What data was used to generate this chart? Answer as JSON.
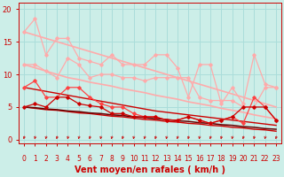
{
  "x": [
    0,
    1,
    2,
    3,
    4,
    5,
    6,
    7,
    8,
    9,
    10,
    11,
    12,
    13,
    14,
    15,
    16,
    17,
    18,
    19,
    20,
    21,
    22,
    23
  ],
  "background_color": "#cceee8",
  "grid_color": "#aaddda",
  "xlabel": "Vent moyen/en rafales ( km/h )",
  "xlabel_color": "#cc0000",
  "tick_color": "#cc0000",
  "ylim": [
    -0.5,
    21
  ],
  "yticks": [
    0,
    5,
    10,
    15,
    20
  ],
  "lines": [
    {
      "color": "#ffaaaa",
      "lw": 0.9,
      "marker": "D",
      "markersize": 1.8,
      "values": [
        16.5,
        18.5,
        13.0,
        15.5,
        15.5,
        12.5,
        12.0,
        11.5,
        13.0,
        11.5,
        11.5,
        11.5,
        13.0,
        13.0,
        11.0,
        6.5,
        11.5,
        11.5,
        5.5,
        8.0,
        5.5,
        13.0,
        8.5,
        8.0
      ]
    },
    {
      "color": "#ffaaaa",
      "lw": 1.2,
      "marker": null,
      "markersize": 0,
      "values": [
        16.5,
        16.0,
        15.5,
        15.0,
        14.5,
        14.0,
        13.5,
        13.0,
        12.5,
        12.0,
        11.5,
        11.0,
        10.5,
        10.0,
        9.5,
        9.0,
        8.5,
        8.0,
        7.5,
        7.0,
        6.5,
        6.0,
        5.5,
        5.0
      ]
    },
    {
      "color": "#ffaaaa",
      "lw": 0.9,
      "marker": "D",
      "markersize": 1.8,
      "values": [
        11.5,
        11.5,
        10.5,
        9.5,
        12.5,
        11.5,
        9.5,
        10.0,
        10.0,
        9.5,
        9.5,
        9.0,
        9.5,
        9.5,
        9.5,
        9.5,
        6.5,
        6.0,
        6.0,
        6.0,
        5.0,
        5.0,
        8.0,
        8.0
      ]
    },
    {
      "color": "#ffaaaa",
      "lw": 1.2,
      "marker": null,
      "markersize": 0,
      "values": [
        11.5,
        11.0,
        10.5,
        10.0,
        9.5,
        9.2,
        8.8,
        8.5,
        8.2,
        7.8,
        7.5,
        7.2,
        6.8,
        6.5,
        6.2,
        5.8,
        5.5,
        5.2,
        4.8,
        4.5,
        4.2,
        3.8,
        3.5,
        3.2
      ]
    },
    {
      "color": "#ff4444",
      "lw": 0.9,
      "marker": "D",
      "markersize": 1.8,
      "values": [
        8.0,
        9.0,
        6.5,
        6.5,
        8.0,
        8.0,
        6.5,
        5.5,
        5.0,
        5.0,
        4.0,
        3.5,
        3.5,
        3.0,
        3.0,
        3.5,
        3.0,
        2.5,
        3.0,
        3.5,
        2.5,
        6.5,
        5.0,
        3.0
      ]
    },
    {
      "color": "#cc0000",
      "lw": 1.0,
      "marker": null,
      "markersize": 0,
      "values": [
        8.0,
        7.7,
        7.4,
        7.1,
        6.8,
        6.5,
        6.2,
        5.9,
        5.6,
        5.3,
        5.0,
        4.7,
        4.4,
        4.2,
        4.0,
        3.8,
        3.6,
        3.4,
        3.2,
        3.0,
        2.8,
        2.6,
        2.4,
        2.2
      ]
    },
    {
      "color": "#cc0000",
      "lw": 0.9,
      "marker": "D",
      "markersize": 1.8,
      "values": [
        5.0,
        5.5,
        5.0,
        6.5,
        6.5,
        5.5,
        5.2,
        5.0,
        4.0,
        4.0,
        3.5,
        3.5,
        3.5,
        3.0,
        3.0,
        3.5,
        3.0,
        2.5,
        3.0,
        3.5,
        5.0,
        5.0,
        5.0,
        3.0
      ]
    },
    {
      "color": "#cc0000",
      "lw": 1.0,
      "marker": null,
      "markersize": 0,
      "values": [
        5.0,
        4.8,
        4.6,
        4.5,
        4.3,
        4.1,
        4.0,
        3.8,
        3.6,
        3.5,
        3.3,
        3.1,
        3.0,
        2.8,
        2.7,
        2.5,
        2.4,
        2.2,
        2.1,
        1.9,
        1.8,
        1.6,
        1.5,
        1.3
      ]
    },
    {
      "color": "#660000",
      "lw": 1.1,
      "marker": null,
      "markersize": 0,
      "values": [
        5.0,
        4.9,
        4.7,
        4.6,
        4.4,
        4.3,
        4.1,
        4.0,
        3.8,
        3.7,
        3.5,
        3.4,
        3.2,
        3.1,
        2.9,
        2.8,
        2.6,
        2.5,
        2.3,
        2.2,
        2.0,
        1.9,
        1.7,
        1.6
      ]
    }
  ],
  "arrow_color": "#cc0000"
}
